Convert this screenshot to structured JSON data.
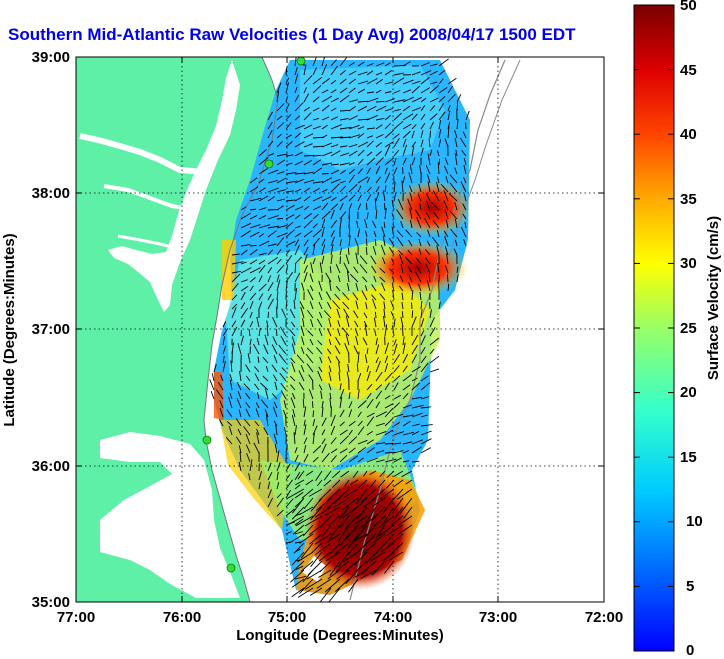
{
  "title": "Southern Mid-Atlantic Raw Velocities (1 Day Avg) 2008/04/17 1500 EDT",
  "x_axis": {
    "label": "Longitude (Degrees:Minutes)",
    "ticks": [
      "77:00",
      "76:00",
      "75:00",
      "74:00",
      "73:00",
      "72:00"
    ]
  },
  "y_axis": {
    "label": "Latitude (Degrees:Minutes)",
    "ticks": [
      "39:00",
      "38:00",
      "37:00",
      "36:00",
      "35:00"
    ]
  },
  "colorbar": {
    "label": "Surface Velocity (cm/s)",
    "min": 0,
    "max": 50,
    "ticks": [
      "50",
      "45",
      "40",
      "35",
      "30",
      "25",
      "20",
      "15",
      "10",
      "5",
      "0"
    ]
  },
  "colors": {
    "land": "#5ff0a8",
    "title": "#0000ee",
    "station": "#33dd33"
  },
  "grid": true,
  "stations": [
    "station-1",
    "station-2",
    "station-3",
    "station-4"
  ]
}
